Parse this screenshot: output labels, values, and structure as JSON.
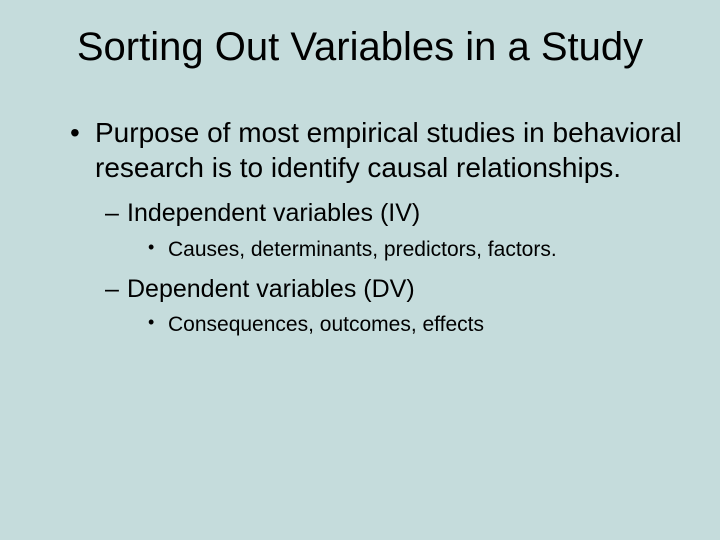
{
  "slide": {
    "background_color": "#c5dcdc",
    "text_color": "#000000",
    "font_family": "Arial",
    "title": {
      "text": "Sorting Out Variables in a Study",
      "fontsize": 40,
      "align": "center"
    },
    "bullets": [
      {
        "level": 1,
        "text": "Purpose of most empirical studies in behavioral research is to identify causal relationships.",
        "fontsize": 28
      },
      {
        "level": 2,
        "text": "Independent variables (IV)",
        "fontsize": 25
      },
      {
        "level": 3,
        "text": "Causes, determinants, predictors, factors.",
        "fontsize": 21
      },
      {
        "level": 2,
        "text": "Dependent variables (DV)",
        "fontsize": 25
      },
      {
        "level": 3,
        "text": "Consequences, outcomes, effects",
        "fontsize": 21
      }
    ]
  }
}
